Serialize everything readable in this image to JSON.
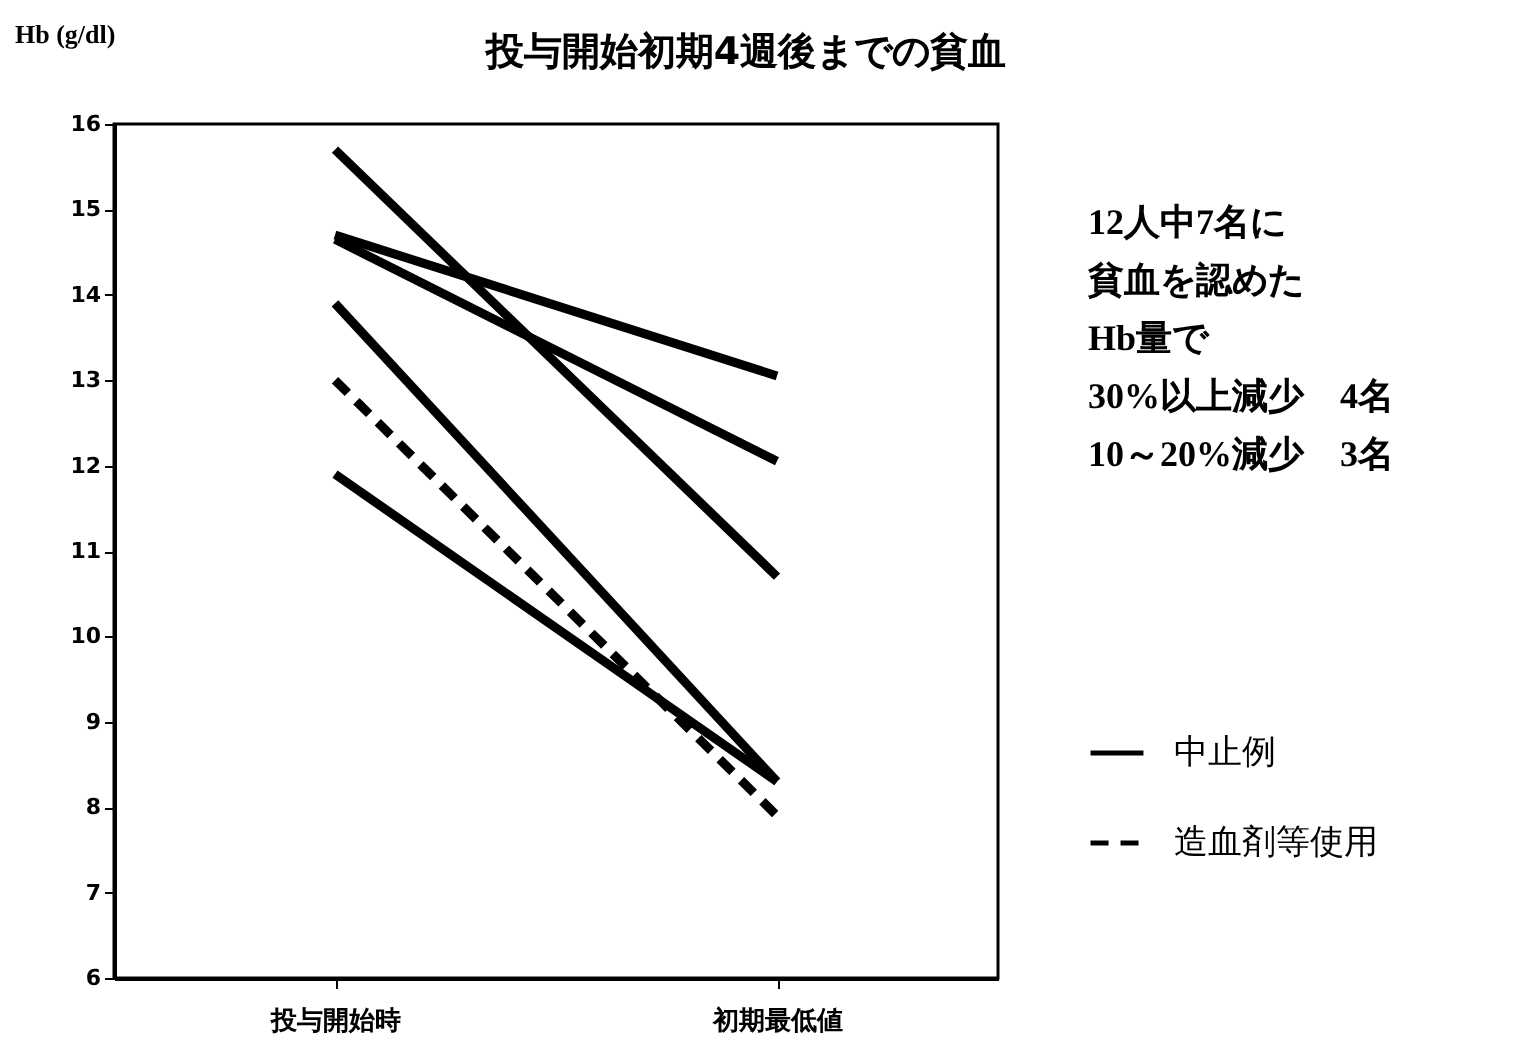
{
  "chart_data": {
    "type": "line",
    "title": "投与開始初期4週後までの貧血",
    "ylabel": "Hb (g/dl)",
    "categories": [
      "投与開始時",
      "初期最低値"
    ],
    "series": [
      {
        "name": "中止例",
        "color": "#000000",
        "line_style": "solid",
        "values": [
          15.7,
          10.7
        ]
      },
      {
        "color": "#000000",
        "line_style": "solid",
        "values": [
          14.7,
          13.05
        ]
      },
      {
        "color": "#000000",
        "line_style": "solid",
        "values": [
          14.65,
          12.05
        ]
      },
      {
        "color": "#000000",
        "line_style": "solid",
        "values": [
          13.9,
          8.3
        ]
      },
      {
        "color": "#000000",
        "line_style": "solid",
        "values": [
          11.9,
          8.3
        ]
      },
      {
        "name": "造血剤等使用",
        "color": "#000000",
        "line_style": "dashed",
        "values": [
          13.0,
          7.9
        ]
      }
    ],
    "ylim": [
      6,
      16
    ],
    "yticks": [
      6,
      7,
      8,
      9,
      10,
      11,
      12,
      13,
      14,
      15,
      16
    ],
    "grid": false,
    "legend": "right",
    "marker": "none",
    "annotations": [
      "12人中7名に",
      "貧血を認めた",
      "Hb量で",
      "30%以上減少　4名",
      "10～20%減少　3名"
    ]
  }
}
